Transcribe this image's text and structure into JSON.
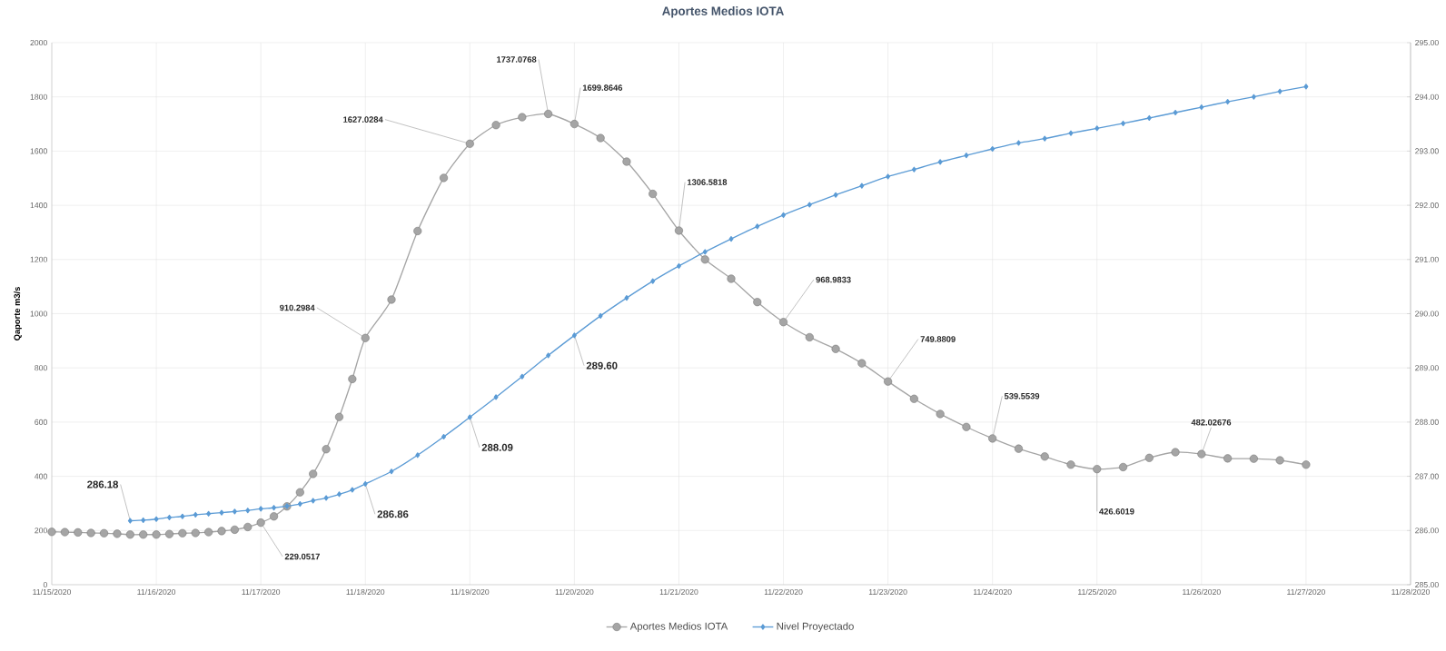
{
  "chart_data": {
    "type": "line",
    "title": "Aportes Medios  IOTA",
    "ylabel": "Qaporte m3/s",
    "xlim": [
      "2020-11-15",
      "2020-11-28"
    ],
    "xticks": [
      {
        "value": "2020-11-15",
        "label": "11/15/2020"
      },
      {
        "value": "2020-11-16",
        "label": "11/16/2020"
      },
      {
        "value": "2020-11-17",
        "label": "11/17/2020"
      },
      {
        "value": "2020-11-18",
        "label": "11/18/2020"
      },
      {
        "value": "2020-11-19",
        "label": "11/19/2020"
      },
      {
        "value": "2020-11-20",
        "label": "11/20/2020"
      },
      {
        "value": "2020-11-21",
        "label": "11/21/2020"
      },
      {
        "value": "2020-11-22",
        "label": "11/22/2020"
      },
      {
        "value": "2020-11-23",
        "label": "11/23/2020"
      },
      {
        "value": "2020-11-24",
        "label": "11/24/2020"
      },
      {
        "value": "2020-11-25",
        "label": "11/25/2020"
      },
      {
        "value": "2020-11-26",
        "label": "11/26/2020"
      },
      {
        "value": "2020-11-27",
        "label": "11/27/2020"
      },
      {
        "value": "2020-11-28",
        "label": "11/28/2020"
      }
    ],
    "ylim": [
      0,
      2000
    ],
    "yticks": [
      0,
      200,
      400,
      600,
      800,
      1000,
      1200,
      1400,
      1600,
      1800,
      2000
    ],
    "y2lim": [
      285,
      295
    ],
    "y2ticks": [
      {
        "value": 285,
        "label": "285.00"
      },
      {
        "value": 286,
        "label": "286.00"
      },
      {
        "value": 287,
        "label": "287.00"
      },
      {
        "value": 288,
        "label": "288.00"
      },
      {
        "value": 289,
        "label": "289.00"
      },
      {
        "value": 290,
        "label": "290.00"
      },
      {
        "value": 291,
        "label": "291.00"
      },
      {
        "value": 292,
        "label": "292.00"
      },
      {
        "value": 293,
        "label": "293.00"
      },
      {
        "value": 294,
        "label": "294.00"
      },
      {
        "value": 295,
        "label": "295.00"
      }
    ],
    "grid": true,
    "legend": "bottom",
    "series": [
      {
        "name": "Aportes Medios IOTA",
        "color": "#a5a5a5",
        "marker": "circle",
        "x": [
          "2020-11-15T00:00",
          "2020-11-15T03:00",
          "2020-11-15T06:00",
          "2020-11-15T09:00",
          "2020-11-15T12:00",
          "2020-11-15T15:00",
          "2020-11-15T18:00",
          "2020-11-15T21:00",
          "2020-11-16T00:00",
          "2020-11-16T03:00",
          "2020-11-16T06:00",
          "2020-11-16T09:00",
          "2020-11-16T12:00",
          "2020-11-16T15:00",
          "2020-11-16T18:00",
          "2020-11-16T21:00",
          "2020-11-17T00:00",
          "2020-11-17T03:00",
          "2020-11-17T06:00",
          "2020-11-17T09:00",
          "2020-11-17T12:00",
          "2020-11-17T15:00",
          "2020-11-17T18:00",
          "2020-11-17T21:00",
          "2020-11-18T00:00",
          "2020-11-18T06:00",
          "2020-11-18T12:00",
          "2020-11-18T18:00",
          "2020-11-19T00:00",
          "2020-11-19T06:00",
          "2020-11-19T12:00",
          "2020-11-19T18:00",
          "2020-11-20T00:00",
          "2020-11-20T06:00",
          "2020-11-20T12:00",
          "2020-11-20T18:00",
          "2020-11-21T00:00",
          "2020-11-21T06:00",
          "2020-11-21T12:00",
          "2020-11-21T18:00",
          "2020-11-22T00:00",
          "2020-11-22T06:00",
          "2020-11-22T12:00",
          "2020-11-22T18:00",
          "2020-11-23T00:00",
          "2020-11-23T06:00",
          "2020-11-23T12:00",
          "2020-11-23T18:00",
          "2020-11-24T00:00",
          "2020-11-24T06:00",
          "2020-11-24T12:00",
          "2020-11-24T18:00",
          "2020-11-25T00:00",
          "2020-11-25T06:00",
          "2020-11-25T12:00",
          "2020-11-25T18:00",
          "2020-11-26T00:00",
          "2020-11-26T06:00",
          "2020-11-26T12:00",
          "2020-11-26T18:00",
          "2020-11-27T00:00"
        ],
        "values": [
          195,
          194,
          193,
          191,
          190,
          188,
          185,
          185,
          185,
          187,
          190,
          191,
          194,
          198,
          203,
          213,
          229.0517,
          252,
          289,
          341,
          409,
          500,
          619,
          759,
          910.2984,
          1052,
          1305,
          1501,
          1627.0284,
          1696,
          1725,
          1737.0768,
          1699.8646,
          1648,
          1561,
          1442,
          1306.5818,
          1200,
          1129,
          1043,
          968.9833,
          913,
          870,
          817,
          749.8809,
          686,
          630,
          582,
          539.5539,
          502,
          473,
          443,
          426.6019,
          434,
          468,
          489,
          482.02676,
          466,
          465,
          459,
          443
        ],
        "value_labels": [
          null,
          null,
          null,
          null,
          null,
          null,
          null,
          null,
          null,
          null,
          null,
          null,
          null,
          null,
          null,
          null,
          "229.0517",
          null,
          null,
          null,
          null,
          null,
          null,
          null,
          "910.2984",
          null,
          null,
          null,
          "1627.0284",
          null,
          null,
          "1737.0768",
          "1699.8646",
          null,
          null,
          null,
          "1306.5818",
          null,
          null,
          null,
          "968.9833",
          null,
          null,
          null,
          "749.8809",
          null,
          null,
          null,
          "539.5539",
          null,
          null,
          null,
          "426.6019",
          null,
          null,
          null,
          "482.02676",
          null,
          null,
          null,
          null
        ]
      },
      {
        "name": "Nivel Proyectado",
        "color": "#5b9bd5",
        "marker": "diamond",
        "axis": "y2",
        "x": [
          "2020-11-15T18:00",
          "2020-11-15T21:00",
          "2020-11-16T00:00",
          "2020-11-16T03:00",
          "2020-11-16T06:00",
          "2020-11-16T09:00",
          "2020-11-16T12:00",
          "2020-11-16T15:00",
          "2020-11-16T18:00",
          "2020-11-16T21:00",
          "2020-11-17T00:00",
          "2020-11-17T03:00",
          "2020-11-17T06:00",
          "2020-11-17T09:00",
          "2020-11-17T12:00",
          "2020-11-17T15:00",
          "2020-11-17T18:00",
          "2020-11-17T21:00",
          "2020-11-18T00:00",
          "2020-11-18T06:00",
          "2020-11-18T12:00",
          "2020-11-18T18:00",
          "2020-11-19T00:00",
          "2020-11-19T06:00",
          "2020-11-19T12:00",
          "2020-11-19T18:00",
          "2020-11-20T00:00",
          "2020-11-20T06:00",
          "2020-11-20T12:00",
          "2020-11-20T18:00",
          "2020-11-21T00:00",
          "2020-11-21T06:00",
          "2020-11-21T12:00",
          "2020-11-21T18:00",
          "2020-11-22T00:00",
          "2020-11-22T06:00",
          "2020-11-22T12:00",
          "2020-11-22T18:00",
          "2020-11-23T00:00",
          "2020-11-23T06:00",
          "2020-11-23T12:00",
          "2020-11-23T18:00",
          "2020-11-24T00:00",
          "2020-11-24T06:00",
          "2020-11-24T12:00",
          "2020-11-24T18:00",
          "2020-11-25T00:00",
          "2020-11-25T06:00",
          "2020-11-25T12:00",
          "2020-11-25T18:00",
          "2020-11-26T00:00",
          "2020-11-26T06:00",
          "2020-11-26T12:00",
          "2020-11-26T18:00",
          "2020-11-27T00:00"
        ],
        "values": [
          286.18,
          286.19,
          286.21,
          286.24,
          286.26,
          286.29,
          286.31,
          286.33,
          286.35,
          286.37,
          286.4,
          286.42,
          286.45,
          286.49,
          286.55,
          286.6,
          286.67,
          286.75,
          286.86,
          287.09,
          287.39,
          287.73,
          288.09,
          288.46,
          288.84,
          289.23,
          289.6,
          289.96,
          290.29,
          290.6,
          290.88,
          291.14,
          291.38,
          291.61,
          291.82,
          292.01,
          292.19,
          292.36,
          292.53,
          292.66,
          292.8,
          292.92,
          293.04,
          293.15,
          293.23,
          293.33,
          293.42,
          293.51,
          293.61,
          293.71,
          293.81,
          293.91,
          294.0,
          294.1,
          294.19
        ],
        "value_labels": [
          "286.18",
          null,
          null,
          null,
          null,
          null,
          null,
          null,
          null,
          null,
          null,
          null,
          null,
          null,
          null,
          null,
          null,
          null,
          "286.86",
          null,
          null,
          null,
          "288.09",
          null,
          null,
          null,
          "289.60",
          null,
          null,
          null,
          null,
          null,
          null,
          null,
          null,
          null,
          null,
          null,
          null,
          null,
          null,
          null,
          null,
          null,
          null,
          null,
          null,
          null,
          null,
          null,
          null,
          null,
          null,
          null,
          null
        ]
      }
    ]
  }
}
